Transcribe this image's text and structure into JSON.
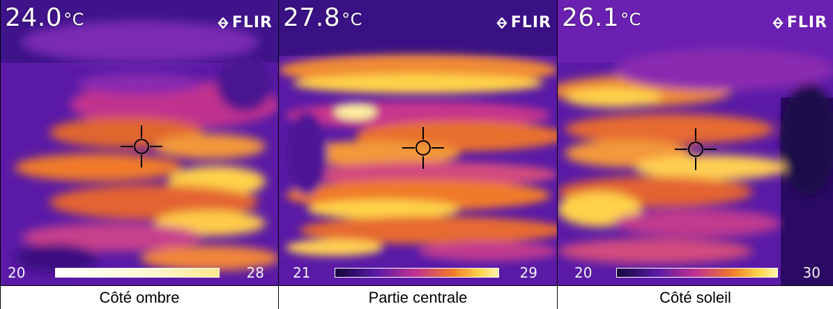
{
  "panels": [
    {
      "temperature": "24.0",
      "unit": "°C",
      "logo": "FLIR",
      "scale_min": "20",
      "scale_max": "28",
      "caption": "Côté ombre",
      "gradient": "white-to-yellow"
    },
    {
      "temperature": "27.8",
      "unit": "°C",
      "logo": "FLIR",
      "scale_min": "21",
      "scale_max": "29",
      "caption": "Partie centrale",
      "gradient": "ironbow"
    },
    {
      "temperature": "26.1",
      "unit": "°C",
      "logo": "FLIR",
      "scale_min": "20",
      "scale_max": "30",
      "caption": "Côté soleil",
      "gradient": "ironbow"
    }
  ],
  "colors": {
    "cold": "#2a0a63",
    "cool": "#6a1fb0",
    "mid": "#c2338f",
    "warm": "#f07a2a",
    "hot": "#ffd24a",
    "hottest": "#fff3a8"
  }
}
